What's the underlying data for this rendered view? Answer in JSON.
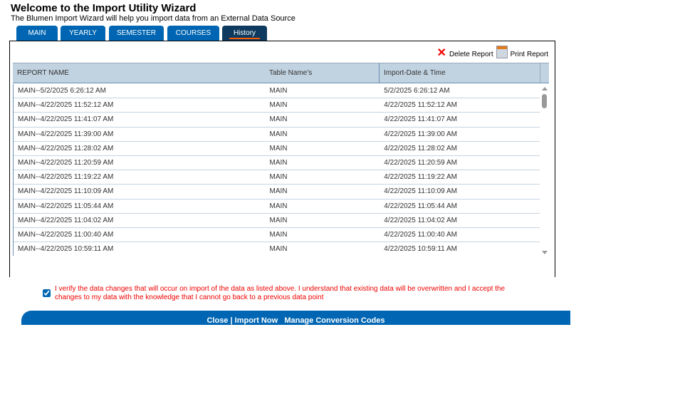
{
  "header": {
    "title": "Welcome to the Import Utility Wizard",
    "subtitle": "The Blumen Import Wizard will help you import data from an External Data Source"
  },
  "tabs": [
    {
      "label": "MAIN"
    },
    {
      "label": "YEARLY"
    },
    {
      "label": "SEMESTER"
    },
    {
      "label": "COURSES"
    },
    {
      "label": "History",
      "active": true
    }
  ],
  "actions": {
    "delete": "Delete Report",
    "print": "Print Report"
  },
  "table": {
    "columns": [
      "REPORT NAME",
      "Table Name's",
      "Import-Date & Time"
    ],
    "rows": [
      [
        "MAIN--5/2/2025 6:26:12 AM",
        "MAIN",
        "5/2/2025 6:26:12 AM"
      ],
      [
        "MAIN--4/22/2025 11:52:12 AM",
        "MAIN",
        "4/22/2025 11:52:12 AM"
      ],
      [
        "MAIN--4/22/2025 11:41:07 AM",
        "MAIN",
        "4/22/2025 11:41:07 AM"
      ],
      [
        "MAIN--4/22/2025 11:39:00 AM",
        "MAIN",
        "4/22/2025 11:39:00 AM"
      ],
      [
        "MAIN--4/22/2025 11:28:02 AM",
        "MAIN",
        "4/22/2025 11:28:02 AM"
      ],
      [
        "MAIN--4/22/2025 11:20:59 AM",
        "MAIN",
        "4/22/2025 11:20:59 AM"
      ],
      [
        "MAIN--4/22/2025 11:19:22 AM",
        "MAIN",
        "4/22/2025 11:19:22 AM"
      ],
      [
        "MAIN--4/22/2025 11:10:09 AM",
        "MAIN",
        "4/22/2025 11:10:09 AM"
      ],
      [
        "MAIN--4/22/2025 11:05:44 AM",
        "MAIN",
        "4/22/2025 11:05:44 AM"
      ],
      [
        "MAIN--4/22/2025 11:04:02 AM",
        "MAIN",
        "4/22/2025 11:04:02 AM"
      ],
      [
        "MAIN--4/22/2025 11:00:40 AM",
        "MAIN",
        "4/22/2025 11:00:40 AM"
      ],
      [
        "MAIN--4/22/2025 10:59:11 AM",
        "MAIN",
        "4/22/2025 10:59:11 AM"
      ]
    ]
  },
  "verify": {
    "checked": true,
    "text": "I verify the data changes that will occur on import of the data as listed above. I understand that existing data will be overwritten and I accept the changes to my data with the knowledge that I cannot go back to a previous data point"
  },
  "footer": {
    "close": "Close",
    "separator": "|",
    "import": "Import Now",
    "manage": "Manage Conversion Codes"
  }
}
